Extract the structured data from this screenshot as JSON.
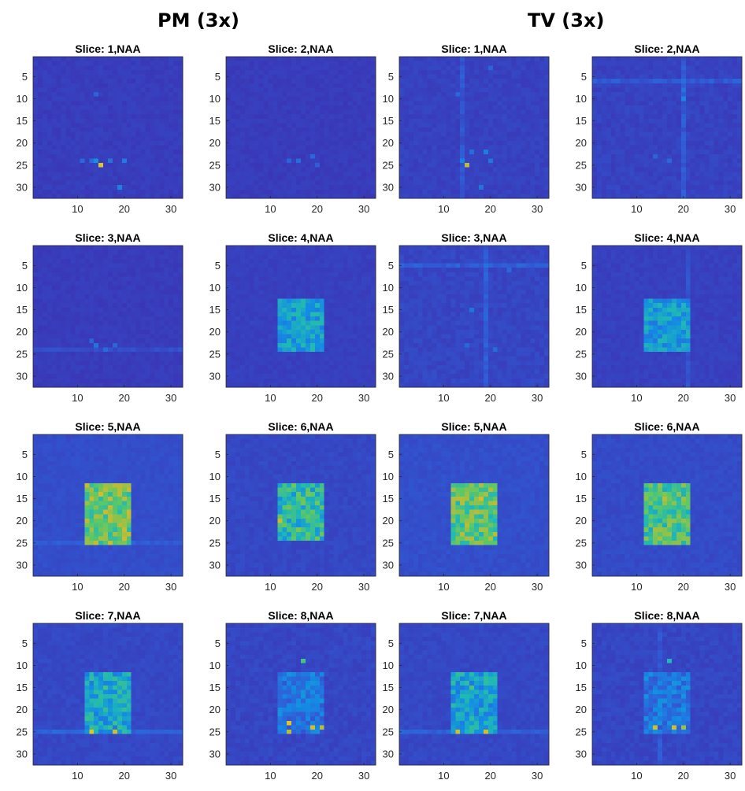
{
  "figure": {
    "group_titles": [
      "PM (3x)",
      "TV (3x)"
    ],
    "colormap": [
      "#3e26a8",
      "#2f5fd8",
      "#138ce4",
      "#1fb8b6",
      "#5fc863",
      "#cfba2d",
      "#f5d91e"
    ]
  },
  "chart_data": [
    {
      "type": "heatmap",
      "group": "PM (3x)",
      "title": "Slice: 1,NAA",
      "x_ticks": [
        10,
        20,
        30
      ],
      "y_ticks": [
        5,
        10,
        15,
        20,
        25,
        30
      ],
      "xlim": [
        1,
        32
      ],
      "ylim": [
        1,
        32
      ],
      "grid_size": 32,
      "background": 0.05,
      "noise": 0.035,
      "seed": 11,
      "block": null,
      "streak_col": null,
      "streak_row": null,
      "streak_level": 0,
      "hotspots": [
        {
          "x": 15,
          "y": 25,
          "v": 0.9
        },
        {
          "x": 14,
          "y": 24,
          "v": 0.35
        },
        {
          "x": 20,
          "y": 24,
          "v": 0.28
        },
        {
          "x": 17,
          "y": 24,
          "v": 0.25
        },
        {
          "x": 19,
          "y": 30,
          "v": 0.3
        },
        {
          "x": 13,
          "y": 24,
          "v": 0.22
        },
        {
          "x": 11,
          "y": 24,
          "v": 0.2
        },
        {
          "x": 14,
          "y": 9,
          "v": 0.18
        }
      ]
    },
    {
      "type": "heatmap",
      "group": "PM (3x)",
      "title": "Slice: 2,NAA",
      "x_ticks": [
        10,
        20,
        30
      ],
      "y_ticks": [
        5,
        10,
        15,
        20,
        25,
        30
      ],
      "xlim": [
        1,
        32
      ],
      "ylim": [
        1,
        32
      ],
      "grid_size": 32,
      "background": 0.05,
      "noise": 0.03,
      "seed": 12,
      "block": null,
      "streak_col": null,
      "streak_row": null,
      "streak_level": 0,
      "hotspots": [
        {
          "x": 16,
          "y": 24,
          "v": 0.22
        },
        {
          "x": 19,
          "y": 23,
          "v": 0.2
        },
        {
          "x": 14,
          "y": 24,
          "v": 0.18
        },
        {
          "x": 20,
          "y": 25,
          "v": 0.16
        }
      ]
    },
    {
      "type": "heatmap",
      "group": "TV (3x)",
      "title": "Slice: 1,NAA",
      "x_ticks": [
        10,
        20,
        30
      ],
      "y_ticks": [
        5,
        10,
        15,
        20,
        25,
        30
      ],
      "xlim": [
        1,
        32
      ],
      "ylim": [
        1,
        32
      ],
      "grid_size": 32,
      "background": 0.06,
      "noise": 0.04,
      "seed": 13,
      "block": null,
      "streak_col": 14,
      "streak_row": null,
      "streak_level": 0.06,
      "hotspots": [
        {
          "x": 15,
          "y": 25,
          "v": 0.8
        },
        {
          "x": 14,
          "y": 24,
          "v": 0.3
        },
        {
          "x": 19,
          "y": 22,
          "v": 0.28
        },
        {
          "x": 20,
          "y": 24,
          "v": 0.25
        },
        {
          "x": 16,
          "y": 22,
          "v": 0.22
        },
        {
          "x": 18,
          "y": 30,
          "v": 0.25
        },
        {
          "x": 13,
          "y": 9,
          "v": 0.2
        },
        {
          "x": 20,
          "y": 3,
          "v": 0.18
        }
      ]
    },
    {
      "type": "heatmap",
      "group": "TV (3x)",
      "title": "Slice: 2,NAA",
      "x_ticks": [
        10,
        20,
        30
      ],
      "y_ticks": [
        5,
        10,
        15,
        20,
        25,
        30
      ],
      "xlim": [
        1,
        32
      ],
      "ylim": [
        1,
        32
      ],
      "grid_size": 32,
      "background": 0.06,
      "noise": 0.045,
      "seed": 14,
      "block": null,
      "streak_col": 20,
      "streak_row": 6,
      "streak_level": 0.07,
      "hotspots": [
        {
          "x": 20,
          "y": 10,
          "v": 0.32
        },
        {
          "x": 20,
          "y": 8,
          "v": 0.25
        },
        {
          "x": 17,
          "y": 24,
          "v": 0.2
        },
        {
          "x": 14,
          "y": 23,
          "v": 0.18
        }
      ]
    },
    {
      "type": "heatmap",
      "group": "PM (3x)",
      "title": "Slice: 3,NAA",
      "x_ticks": [
        10,
        20,
        30
      ],
      "y_ticks": [
        5,
        10,
        15,
        20,
        25,
        30
      ],
      "xlim": [
        1,
        32
      ],
      "ylim": [
        1,
        32
      ],
      "grid_size": 32,
      "background": 0.05,
      "noise": 0.03,
      "seed": 21,
      "block": null,
      "streak_col": null,
      "streak_row": 24,
      "streak_level": 0.05,
      "hotspots": [
        {
          "x": 14,
          "y": 23,
          "v": 0.25
        },
        {
          "x": 16,
          "y": 24,
          "v": 0.22
        },
        {
          "x": 18,
          "y": 23,
          "v": 0.2
        },
        {
          "x": 13,
          "y": 22,
          "v": 0.18
        }
      ]
    },
    {
      "type": "heatmap",
      "group": "PM (3x)",
      "title": "Slice: 4,NAA",
      "x_ticks": [
        10,
        20,
        30
      ],
      "y_ticks": [
        5,
        10,
        15,
        20,
        25,
        30
      ],
      "xlim": [
        1,
        32
      ],
      "ylim": [
        1,
        32
      ],
      "grid_size": 32,
      "background": 0.06,
      "noise": 0.03,
      "seed": 22,
      "block": {
        "x0": 12,
        "x1": 21,
        "y0": 13,
        "y1": 24,
        "level": 0.4,
        "var": 0.12
      },
      "streak_col": null,
      "streak_row": null,
      "streak_level": 0,
      "hotspots": []
    },
    {
      "type": "heatmap",
      "group": "TV (3x)",
      "title": "Slice: 3,NAA",
      "x_ticks": [
        10,
        20,
        30
      ],
      "y_ticks": [
        5,
        10,
        15,
        20,
        25,
        30
      ],
      "xlim": [
        1,
        32
      ],
      "ylim": [
        1,
        32
      ],
      "grid_size": 32,
      "background": 0.07,
      "noise": 0.045,
      "seed": 23,
      "block": null,
      "streak_col": 19,
      "streak_row": 5,
      "streak_level": 0.07,
      "hotspots": [
        {
          "x": 16,
          "y": 15,
          "v": 0.25
        },
        {
          "x": 15,
          "y": 23,
          "v": 0.2
        },
        {
          "x": 21,
          "y": 24,
          "v": 0.22
        },
        {
          "x": 24,
          "y": 6,
          "v": 0.2
        }
      ]
    },
    {
      "type": "heatmap",
      "group": "TV (3x)",
      "title": "Slice: 4,NAA",
      "x_ticks": [
        10,
        20,
        30
      ],
      "y_ticks": [
        5,
        10,
        15,
        20,
        25,
        30
      ],
      "xlim": [
        1,
        32
      ],
      "ylim": [
        1,
        32
      ],
      "grid_size": 32,
      "background": 0.06,
      "noise": 0.035,
      "seed": 24,
      "block": {
        "x0": 12,
        "x1": 21,
        "y0": 13,
        "y1": 24,
        "level": 0.38,
        "var": 0.12
      },
      "streak_col": 21,
      "streak_row": null,
      "streak_level": 0.06,
      "hotspots": []
    },
    {
      "type": "heatmap",
      "group": "PM (3x)",
      "title": "Slice: 5,NAA",
      "x_ticks": [
        10,
        20,
        30
      ],
      "y_ticks": [
        5,
        10,
        15,
        20,
        25,
        30
      ],
      "xlim": [
        1,
        32
      ],
      "ylim": [
        1,
        32
      ],
      "grid_size": 32,
      "background": 0.1,
      "noise": 0.03,
      "seed": 31,
      "block": {
        "x0": 12,
        "x1": 21,
        "y0": 12,
        "y1": 25,
        "level": 0.68,
        "var": 0.16
      },
      "streak_col": null,
      "streak_row": 25,
      "streak_level": 0.05,
      "hotspots": [
        {
          "x": 15,
          "y": 14,
          "v": 0.85
        },
        {
          "x": 17,
          "y": 19,
          "v": 0.8
        }
      ]
    },
    {
      "type": "heatmap",
      "group": "PM (3x)",
      "title": "Slice: 6,NAA",
      "x_ticks": [
        10,
        20,
        30
      ],
      "y_ticks": [
        5,
        10,
        15,
        20,
        25,
        30
      ],
      "xlim": [
        1,
        32
      ],
      "ylim": [
        1,
        32
      ],
      "grid_size": 32,
      "background": 0.08,
      "noise": 0.035,
      "seed": 32,
      "block": {
        "x0": 12,
        "x1": 21,
        "y0": 12,
        "y1": 24,
        "level": 0.52,
        "var": 0.18
      },
      "streak_col": null,
      "streak_row": null,
      "streak_level": 0,
      "hotspots": [
        {
          "x": 12,
          "y": 20,
          "v": 0.82
        },
        {
          "x": 18,
          "y": 14,
          "v": 0.7
        }
      ]
    },
    {
      "type": "heatmap",
      "group": "TV (3x)",
      "title": "Slice: 5,NAA",
      "x_ticks": [
        10,
        20,
        30
      ],
      "y_ticks": [
        5,
        10,
        15,
        20,
        25,
        30
      ],
      "xlim": [
        1,
        32
      ],
      "ylim": [
        1,
        32
      ],
      "grid_size": 32,
      "background": 0.1,
      "noise": 0.035,
      "seed": 33,
      "block": {
        "x0": 12,
        "x1": 21,
        "y0": 12,
        "y1": 25,
        "level": 0.64,
        "var": 0.16
      },
      "streak_col": null,
      "streak_row": null,
      "streak_level": 0,
      "hotspots": [
        {
          "x": 18,
          "y": 15,
          "v": 0.85
        }
      ]
    },
    {
      "type": "heatmap",
      "group": "TV (3x)",
      "title": "Slice: 6,NAA",
      "x_ticks": [
        10,
        20,
        30
      ],
      "y_ticks": [
        5,
        10,
        15,
        20,
        25,
        30
      ],
      "xlim": [
        1,
        32
      ],
      "ylim": [
        1,
        32
      ],
      "grid_size": 32,
      "background": 0.09,
      "noise": 0.035,
      "seed": 34,
      "block": {
        "x0": 12,
        "x1": 21,
        "y0": 12,
        "y1": 25,
        "level": 0.6,
        "var": 0.16
      },
      "streak_col": null,
      "streak_row": null,
      "streak_level": 0,
      "hotspots": [
        {
          "x": 16,
          "y": 15,
          "v": 0.8
        }
      ]
    },
    {
      "type": "heatmap",
      "group": "PM (3x)",
      "title": "Slice: 7,NAA",
      "x_ticks": [
        10,
        20,
        30
      ],
      "y_ticks": [
        5,
        10,
        15,
        20,
        25,
        30
      ],
      "xlim": [
        1,
        32
      ],
      "ylim": [
        1,
        32
      ],
      "grid_size": 32,
      "background": 0.08,
      "noise": 0.035,
      "seed": 41,
      "block": {
        "x0": 12,
        "x1": 21,
        "y0": 12,
        "y1": 25,
        "level": 0.42,
        "var": 0.15
      },
      "streak_col": null,
      "streak_row": 25,
      "streak_level": 0.1,
      "hotspots": [
        {
          "x": 13,
          "y": 25,
          "v": 0.9
        },
        {
          "x": 18,
          "y": 25,
          "v": 0.85
        },
        {
          "x": 16,
          "y": 15,
          "v": 0.6
        }
      ]
    },
    {
      "type": "heatmap",
      "group": "PM (3x)",
      "title": "Slice: 8,NAA",
      "x_ticks": [
        10,
        20,
        30
      ],
      "y_ticks": [
        5,
        10,
        15,
        20,
        25,
        30
      ],
      "xlim": [
        1,
        32
      ],
      "ylim": [
        1,
        32
      ],
      "grid_size": 32,
      "background": 0.07,
      "noise": 0.045,
      "seed": 42,
      "block": {
        "x0": 12,
        "x1": 21,
        "y0": 12,
        "y1": 25,
        "level": 0.25,
        "var": 0.12
      },
      "streak_col": null,
      "streak_row": null,
      "streak_level": 0,
      "hotspots": [
        {
          "x": 14,
          "y": 23,
          "v": 0.9
        },
        {
          "x": 14,
          "y": 25,
          "v": 0.8
        },
        {
          "x": 19,
          "y": 24,
          "v": 0.85
        },
        {
          "x": 21,
          "y": 24,
          "v": 0.8
        },
        {
          "x": 17,
          "y": 9,
          "v": 0.6
        }
      ]
    },
    {
      "type": "heatmap",
      "group": "TV (3x)",
      "title": "Slice: 7,NAA",
      "x_ticks": [
        10,
        20,
        30
      ],
      "y_ticks": [
        5,
        10,
        15,
        20,
        25,
        30
      ],
      "xlim": [
        1,
        32
      ],
      "ylim": [
        1,
        32
      ],
      "grid_size": 32,
      "background": 0.08,
      "noise": 0.035,
      "seed": 43,
      "block": {
        "x0": 12,
        "x1": 21,
        "y0": 12,
        "y1": 25,
        "level": 0.4,
        "var": 0.15
      },
      "streak_col": null,
      "streak_row": 25,
      "streak_level": 0.08,
      "hotspots": [
        {
          "x": 13,
          "y": 25,
          "v": 0.85
        },
        {
          "x": 19,
          "y": 25,
          "v": 0.85
        },
        {
          "x": 16,
          "y": 15,
          "v": 0.6
        }
      ]
    },
    {
      "type": "heatmap",
      "group": "TV (3x)",
      "title": "Slice: 8,NAA",
      "x_ticks": [
        10,
        20,
        30
      ],
      "y_ticks": [
        5,
        10,
        15,
        20,
        25,
        30
      ],
      "xlim": [
        1,
        32
      ],
      "ylim": [
        1,
        32
      ],
      "grid_size": 32,
      "background": 0.07,
      "noise": 0.045,
      "seed": 44,
      "block": {
        "x0": 12,
        "x1": 21,
        "y0": 12,
        "y1": 25,
        "level": 0.25,
        "var": 0.12
      },
      "streak_col": 15,
      "streak_row": null,
      "streak_level": 0.05,
      "hotspots": [
        {
          "x": 14,
          "y": 24,
          "v": 0.85
        },
        {
          "x": 18,
          "y": 24,
          "v": 0.85
        },
        {
          "x": 20,
          "y": 24,
          "v": 0.75
        },
        {
          "x": 17,
          "y": 9,
          "v": 0.5
        }
      ]
    }
  ]
}
